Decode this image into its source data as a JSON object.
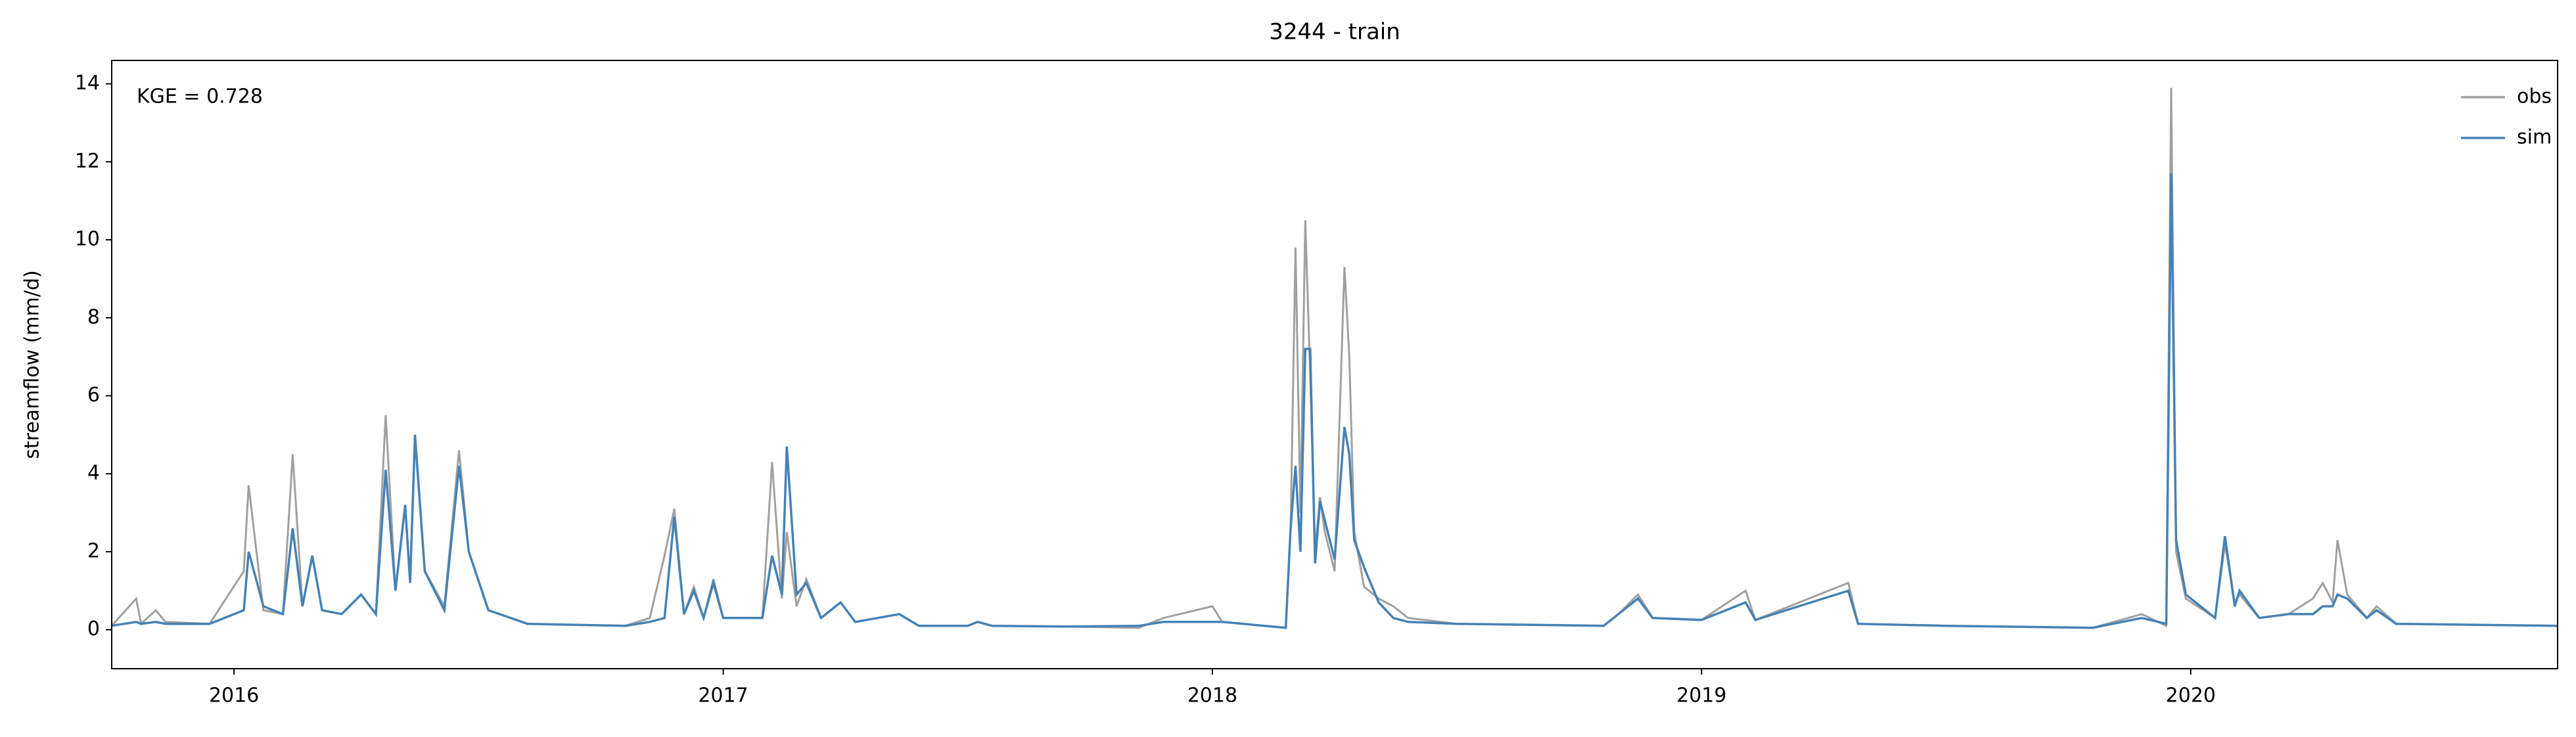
{
  "chart_data": {
    "type": "line",
    "title": "3244 - train",
    "ylabel": "streamflow (mm/d)",
    "annotation": "KGE = 0.728",
    "x": [
      2015.75,
      2015.8,
      2015.81,
      2015.84,
      2015.86,
      2015.95,
      2016.02,
      2016.03,
      2016.06,
      2016.1,
      2016.12,
      2016.14,
      2016.16,
      2016.18,
      2016.22,
      2016.26,
      2016.29,
      2016.31,
      2016.33,
      2016.35,
      2016.36,
      2016.37,
      2016.39,
      2016.43,
      2016.46,
      2016.48,
      2016.52,
      2016.6,
      2016.8,
      2016.85,
      2016.88,
      2016.9,
      2016.92,
      2016.94,
      2016.96,
      2016.98,
      2017.0,
      2017.08,
      2017.1,
      2017.12,
      2017.13,
      2017.15,
      2017.17,
      2017.2,
      2017.24,
      2017.27,
      2017.36,
      2017.4,
      2017.5,
      2017.52,
      2017.55,
      2017.7,
      2017.85,
      2017.9,
      2018.0,
      2018.02,
      2018.15,
      2018.16,
      2018.17,
      2018.18,
      2018.19,
      2018.2,
      2018.21,
      2018.22,
      2018.23,
      2018.25,
      2018.27,
      2018.28,
      2018.29,
      2018.31,
      2018.34,
      2018.37,
      2018.4,
      2018.5,
      2018.8,
      2018.83,
      2018.87,
      2018.9,
      2019.0,
      2019.09,
      2019.11,
      2019.3,
      2019.32,
      2019.5,
      2019.8,
      2019.9,
      2019.95,
      2019.96,
      2019.97,
      2019.99,
      2020.05,
      2020.07,
      2020.09,
      2020.1,
      2020.14,
      2020.2,
      2020.25,
      2020.27,
      2020.29,
      2020.3,
      2020.32,
      2020.36,
      2020.38,
      2020.42,
      2020.75
    ],
    "series": [
      {
        "name": "obs",
        "color": "#a0a0a0",
        "values": [
          0.1,
          0.8,
          0.15,
          0.5,
          0.2,
          0.15,
          1.5,
          3.7,
          0.5,
          0.4,
          4.5,
          0.6,
          1.9,
          0.5,
          0.4,
          0.9,
          0.4,
          5.5,
          1.0,
          3.2,
          1.2,
          4.9,
          1.5,
          0.6,
          4.6,
          2.0,
          0.5,
          0.15,
          0.1,
          0.3,
          1.9,
          3.1,
          0.4,
          1.1,
          0.3,
          1.3,
          0.3,
          0.3,
          4.3,
          0.8,
          2.5,
          0.6,
          1.3,
          0.3,
          0.7,
          0.2,
          0.4,
          0.1,
          0.1,
          0.2,
          0.1,
          0.08,
          0.05,
          0.3,
          0.6,
          0.2,
          0.05,
          2.6,
          9.8,
          3.0,
          10.5,
          6.5,
          2.0,
          3.4,
          2.5,
          1.5,
          9.3,
          7.0,
          2.5,
          1.1,
          0.8,
          0.6,
          0.3,
          0.15,
          0.1,
          0.4,
          0.9,
          0.3,
          0.25,
          1.0,
          0.25,
          1.2,
          0.15,
          0.1,
          0.05,
          0.4,
          0.1,
          13.9,
          2.0,
          0.8,
          0.3,
          2.2,
          0.7,
          0.9,
          0.3,
          0.4,
          0.8,
          1.2,
          0.7,
          2.3,
          0.9,
          0.3,
          0.6,
          0.15,
          0.1
        ]
      },
      {
        "name": "sim",
        "color": "#4682b4",
        "values": [
          0.1,
          0.2,
          0.15,
          0.2,
          0.15,
          0.15,
          0.5,
          2.0,
          0.6,
          0.4,
          2.6,
          0.6,
          1.9,
          0.5,
          0.4,
          0.9,
          0.4,
          4.1,
          1.0,
          3.2,
          1.2,
          5.0,
          1.5,
          0.5,
          4.2,
          2.0,
          0.5,
          0.15,
          0.1,
          0.2,
          0.3,
          2.9,
          0.4,
          1.0,
          0.3,
          1.2,
          0.3,
          0.3,
          1.9,
          0.9,
          4.7,
          0.9,
          1.2,
          0.3,
          0.7,
          0.2,
          0.4,
          0.1,
          0.1,
          0.2,
          0.1,
          0.08,
          0.1,
          0.2,
          0.2,
          0.2,
          0.05,
          2.6,
          4.2,
          2.0,
          7.2,
          7.2,
          1.7,
          3.3,
          2.8,
          1.8,
          5.2,
          4.5,
          2.3,
          1.6,
          0.7,
          0.3,
          0.2,
          0.15,
          0.1,
          0.4,
          0.8,
          0.3,
          0.25,
          0.7,
          0.25,
          1.0,
          0.15,
          0.1,
          0.05,
          0.3,
          0.15,
          11.7,
          2.3,
          0.9,
          0.3,
          2.4,
          0.6,
          1.0,
          0.3,
          0.4,
          0.4,
          0.6,
          0.6,
          0.9,
          0.8,
          0.3,
          0.5,
          0.15,
          0.1
        ]
      }
    ],
    "xlim": [
      2015.75,
      2020.75
    ],
    "xticks": [
      2016,
      2017,
      2018,
      2019,
      2020
    ],
    "ylim": [
      -1.0,
      14.6
    ],
    "yticks": [
      0,
      2,
      4,
      6,
      8,
      10,
      12,
      14
    ],
    "legend": "upper right"
  }
}
